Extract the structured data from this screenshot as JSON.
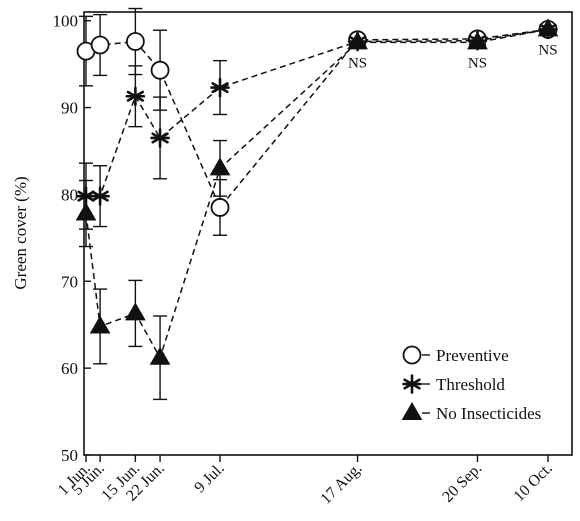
{
  "chart_data": {
    "type": "line",
    "ylabel": "Green cover (%)",
    "ylim": [
      50,
      101
    ],
    "yticks": [
      50,
      60,
      70,
      80,
      90,
      100
    ],
    "categories": [
      "1 Jun.",
      "5 Jun.",
      "15 Jun.",
      "22 Jun.",
      "9 Jul.",
      "17 Aug.",
      "20 Sep.",
      "10 Oct."
    ],
    "x_day": [
      0,
      4,
      14,
      21,
      38,
      77,
      111,
      131
    ],
    "series": [
      {
        "name": "Preventive",
        "marker": "open-circle",
        "values": [
          96.5,
          97.2,
          97.6,
          94.3,
          78.5,
          97.8,
          97.9,
          99.0
        ],
        "errors": [
          4.0,
          3.5,
          3.8,
          4.6,
          3.2,
          null,
          null,
          null
        ]
      },
      {
        "name": "Threshold",
        "marker": "asterisk",
        "values": [
          79.8,
          79.8,
          91.3,
          86.5,
          92.3,
          97.6,
          97.7,
          99.0
        ],
        "errors": [
          3.8,
          3.5,
          3.5,
          4.7,
          3.1,
          null,
          null,
          null
        ]
      },
      {
        "name": "No Insecticides",
        "marker": "filled-triangle",
        "values": [
          77.8,
          64.8,
          66.3,
          61.2,
          83.0,
          97.5,
          97.5,
          99.0
        ],
        "errors": [
          3.8,
          4.3,
          3.8,
          4.8,
          3.2,
          null,
          null,
          null
        ]
      }
    ],
    "annotations": [
      {
        "text": "NS",
        "category": "17 Aug."
      },
      {
        "text": "NS",
        "category": "20 Sep."
      },
      {
        "text": "NS",
        "category": "10 Oct."
      }
    ],
    "legend_position": "bottom-right",
    "grid": false,
    "colors": {
      "line": "#111111",
      "background": "#ffffff"
    }
  }
}
